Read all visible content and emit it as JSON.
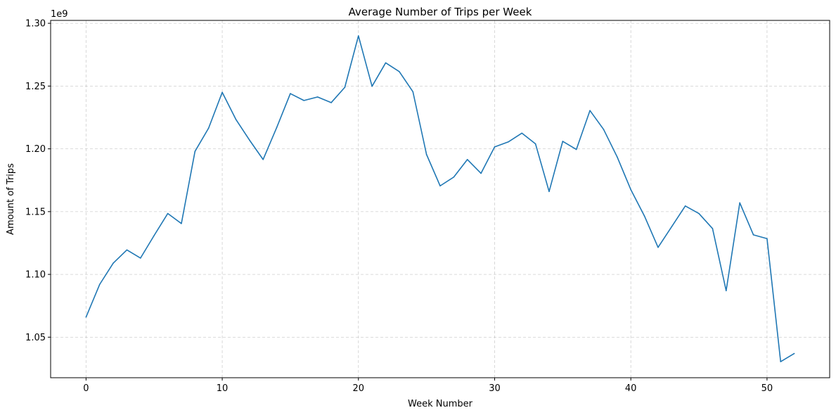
{
  "chart_data": {
    "type": "line",
    "title": "Average Number of Trips per Week",
    "xlabel": "Week Number",
    "ylabel": "Amount of Trips",
    "offset_label": "1e9",
    "xlim": [
      -2.6,
      54.6
    ],
    "ylim": [
      1.0177,
      1.3023
    ],
    "x_ticks": [
      0,
      10,
      20,
      30,
      40,
      50
    ],
    "y_ticks": [
      1.05,
      1.1,
      1.15,
      1.2,
      1.25,
      1.3
    ],
    "y_tick_labels": [
      "1.05",
      "1.10",
      "1.15",
      "1.20",
      "1.25",
      "1.30"
    ],
    "grid": true,
    "line_color": "#1f77b4",
    "series": [
      {
        "x": [
          0,
          1,
          2,
          3,
          4,
          5,
          6,
          7,
          8,
          9,
          10,
          11,
          12,
          13,
          14,
          15,
          16,
          17,
          18,
          19,
          20,
          21,
          22,
          23,
          24,
          25,
          26,
          27,
          28,
          29,
          30,
          31,
          32,
          33,
          34,
          35,
          36,
          37,
          38,
          39,
          40,
          41,
          42,
          43,
          44,
          45,
          46,
          47,
          48,
          49,
          50,
          51,
          52
        ],
        "values": [
          1.066,
          1.092,
          1.109,
          1.1195,
          1.113,
          1.131,
          1.1485,
          1.1405,
          1.198,
          1.2165,
          1.245,
          1.2235,
          1.207,
          1.1915,
          1.217,
          1.244,
          1.2385,
          1.2413,
          1.2368,
          1.249,
          1.29,
          1.2498,
          1.2685,
          1.2615,
          1.2455,
          1.1955,
          1.1705,
          1.1775,
          1.1915,
          1.1805,
          1.2015,
          1.2055,
          1.2125,
          1.204,
          1.166,
          1.206,
          1.1995,
          1.2305,
          1.2155,
          1.1935,
          1.1675,
          1.1465,
          1.1215,
          1.138,
          1.1545,
          1.1485,
          1.1365,
          1.087,
          1.157,
          1.1315,
          1.1285,
          1.0305,
          1.037
        ]
      }
    ]
  }
}
